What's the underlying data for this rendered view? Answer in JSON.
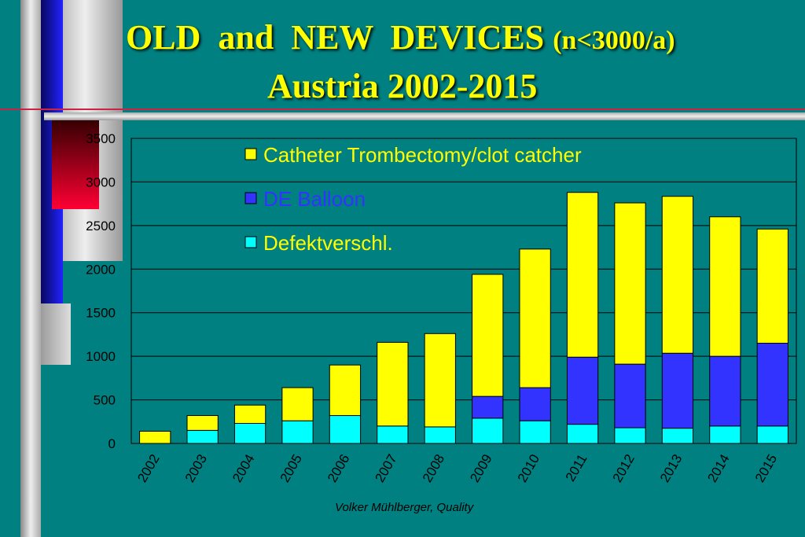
{
  "slide": {
    "title_main": "OLD  and  NEW  DEVICES",
    "title_paren": "(n<3000/a)",
    "title_line2": "Austria 2002-2015",
    "footer": "Volker Mühlberger, Quality"
  },
  "colors": {
    "background": "#008080",
    "title": "#ffff00",
    "catheter": "#ffff00",
    "balloon": "#3333ff",
    "defekt": "#00ffff",
    "legend_catheter_text": "#ffff00",
    "legend_balloon_text": "#3333ff",
    "legend_defekt_text": "#ffff00"
  },
  "chart_data": {
    "type": "bar",
    "stacked": true,
    "categories": [
      "2002",
      "2003",
      "2004",
      "2005",
      "2006",
      "2007",
      "2008",
      "2009",
      "2010",
      "2011",
      "2012",
      "2013",
      "2014",
      "2015"
    ],
    "series": [
      {
        "name": "Defektverschl.",
        "values": [
          0,
          150,
          230,
          260,
          320,
          200,
          190,
          290,
          260,
          220,
          180,
          175,
          200,
          200
        ]
      },
      {
        "name": "DE Balloon",
        "values": [
          0,
          0,
          0,
          0,
          0,
          0,
          0,
          250,
          380,
          770,
          730,
          860,
          800,
          950
        ]
      },
      {
        "name": "Catheter Trombectomy/clot catcher",
        "values": [
          140,
          170,
          210,
          380,
          580,
          960,
          1070,
          1400,
          1590,
          1890,
          1850,
          1800,
          1600,
          1310
        ]
      }
    ],
    "legend_order": [
      "Catheter Trombectomy/clot catcher",
      "DE Balloon",
      "Defektverschl."
    ],
    "legend_position": "top-left inside plot",
    "ylim": [
      0,
      3500
    ],
    "yticks": [
      0,
      500,
      1000,
      1500,
      2000,
      2500,
      3000,
      3500
    ],
    "grid": true,
    "xlabel": "",
    "ylabel": ""
  }
}
